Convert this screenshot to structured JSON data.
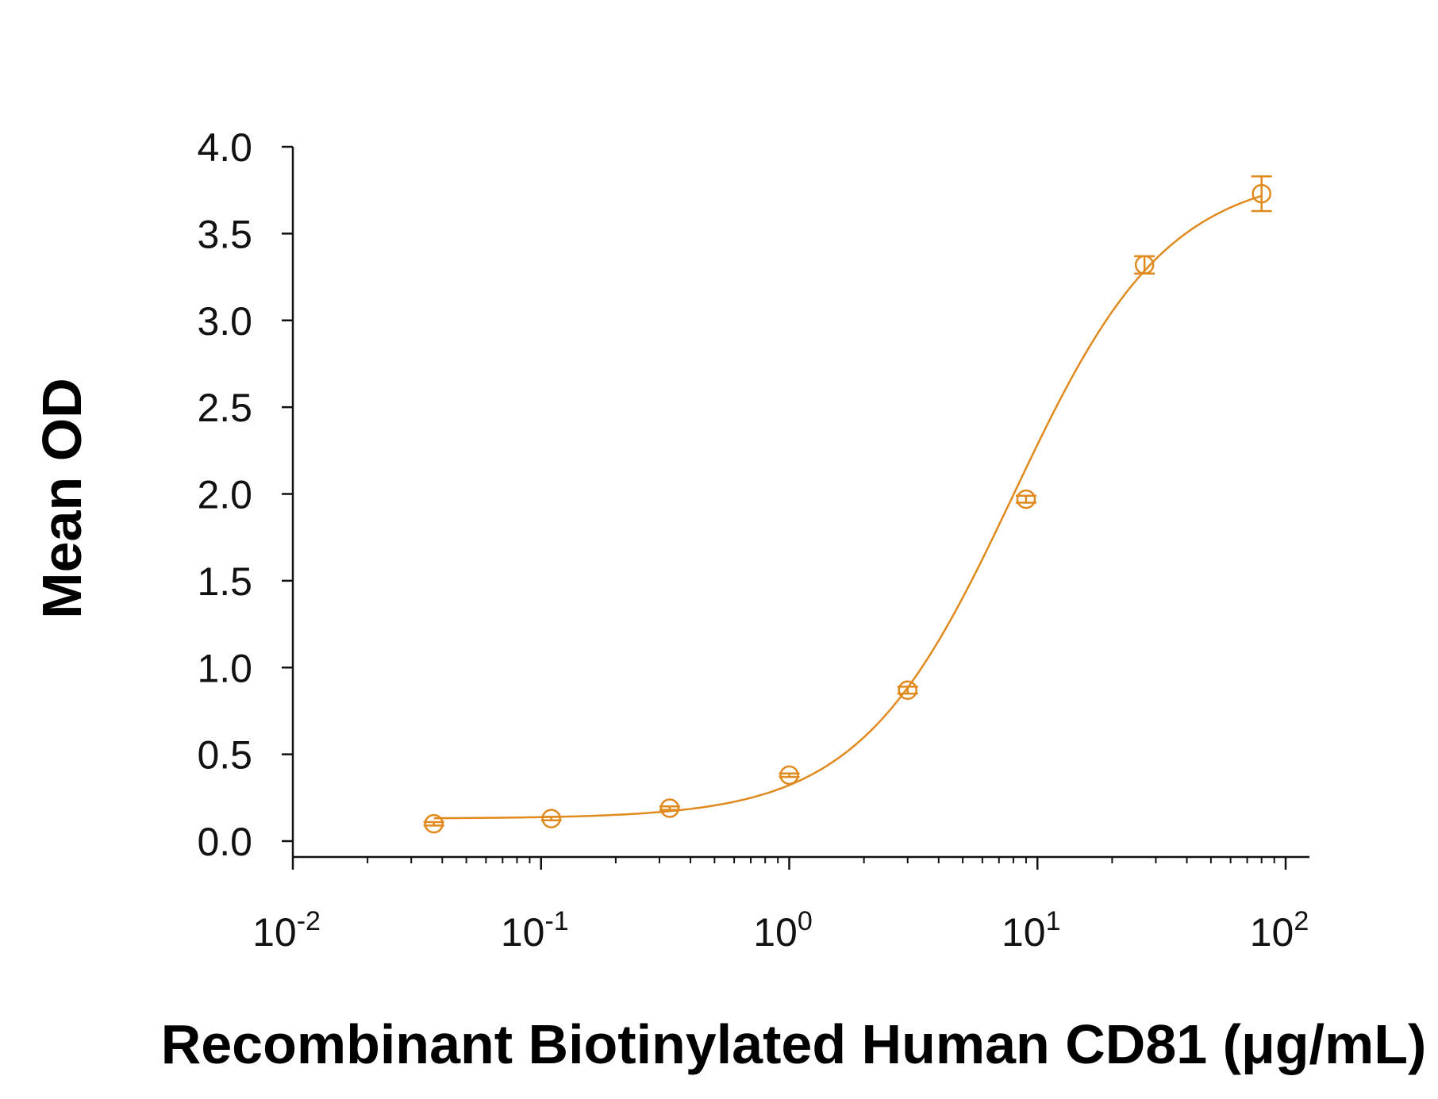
{
  "chart_data": {
    "type": "scatter",
    "title": "",
    "xlabel": "Recombinant Biotinylated Human CD81 (μg/mL)",
    "ylabel": "Mean OD",
    "x_scale": "log",
    "xlim": [
      0.01,
      100
    ],
    "ylim": [
      0.0,
      4.0
    ],
    "grid": false,
    "y_ticks": [
      "0.0",
      "0.5",
      "1.0",
      "1.5",
      "2.0",
      "2.5",
      "3.0",
      "3.5",
      "4.0"
    ],
    "x_ticks": [
      {
        "base": "10",
        "exp": "-2"
      },
      {
        "base": "10",
        "exp": "-1"
      },
      {
        "base": "10",
        "exp": "0"
      },
      {
        "base": "10",
        "exp": "1"
      },
      {
        "base": "10",
        "exp": "2"
      }
    ],
    "series": [
      {
        "color": "#e08a1e",
        "points": [
          {
            "x": 0.037,
            "y": 0.1,
            "err": 0.01
          },
          {
            "x": 0.11,
            "y": 0.13,
            "err": 0.01
          },
          {
            "x": 0.33,
            "y": 0.19,
            "err": 0.01
          },
          {
            "x": 1.0,
            "y": 0.38,
            "err": 0.01
          },
          {
            "x": 3.0,
            "y": 0.87,
            "err": 0.02
          },
          {
            "x": 9.0,
            "y": 1.97,
            "err": 0.02
          },
          {
            "x": 27.0,
            "y": 3.32,
            "err": 0.05
          },
          {
            "x": 80.0,
            "y": 3.73,
            "err": 0.1
          }
        ],
        "fit": {
          "bottom": 0.13,
          "top": 3.86,
          "ec50": 8.0,
          "hill": 1.4
        }
      }
    ]
  }
}
